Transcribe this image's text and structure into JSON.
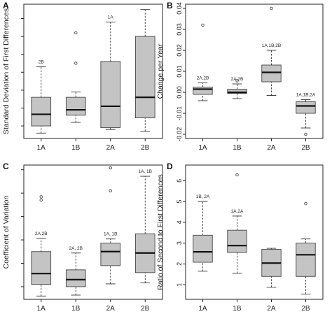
{
  "chart_data": [
    {
      "panel": "A",
      "type": "box",
      "ylabel": "Standard Deviation of First Differences",
      "categories": [
        "1A",
        "1B",
        "2A",
        "2B"
      ],
      "ylim": [
        0.003,
        0.078
      ],
      "yticks": [
        0.01,
        0.02,
        0.03,
        0.04,
        0.05,
        0.06,
        0.07
      ],
      "ytick_labels": [
        "",
        "",
        "",
        "",
        "",
        "",
        ""
      ],
      "boxes": [
        {
          "category": "1A",
          "min": 0.006,
          "q1": 0.01,
          "median": 0.0165,
          "q3": 0.026,
          "max": 0.043,
          "outliers": [],
          "annotation": "2B"
        },
        {
          "category": "1B",
          "min": 0.012,
          "q1": 0.016,
          "median": 0.019,
          "q3": 0.026,
          "max": 0.029,
          "outliers": [
            0.045,
            0.062
          ],
          "annotation": ""
        },
        {
          "category": "2A",
          "min": 0.008,
          "q1": 0.009,
          "median": 0.021,
          "q3": 0.046,
          "max": 0.068,
          "outliers": [],
          "annotation": "1A"
        },
        {
          "category": "2B",
          "min": 0.007,
          "q1": 0.0145,
          "median": 0.026,
          "q3": 0.06,
          "max": 0.075,
          "outliers": [],
          "annotation": ""
        }
      ]
    },
    {
      "panel": "B",
      "type": "box",
      "ylabel": "Change per Year",
      "categories": [
        "1A",
        "1B",
        "2A",
        "2B"
      ],
      "ylim": [
        -0.022,
        0.042
      ],
      "yticks": [
        -0.02,
        -0.01,
        0.0,
        0.01,
        0.02,
        0.03,
        0.04
      ],
      "ytick_labels": [
        "-0.02",
        "-0.01",
        "0.00",
        "0.01",
        "0.02",
        "0.03",
        "0.04"
      ],
      "boxes": [
        {
          "category": "1A",
          "min": -0.004,
          "q1": -0.001,
          "median": 0.0015,
          "q3": 0.0025,
          "max": 0.0045,
          "outliers": [
            0.032
          ],
          "annotation": "2A,2B"
        },
        {
          "category": "1B",
          "min": -0.003,
          "q1": -0.0005,
          "median": 0.0,
          "q3": 0.0015,
          "max": 0.004,
          "outliers": [
            0.0055
          ],
          "annotation": "2A,2B"
        },
        {
          "category": "2A",
          "min": -0.0015,
          "q1": 0.005,
          "median": 0.0095,
          "q3": 0.013,
          "max": 0.02,
          "outliers": [
            0.04
          ],
          "annotation": "1A,1B,2B"
        },
        {
          "category": "2B",
          "min": -0.017,
          "q1": -0.01,
          "median": -0.0065,
          "q3": -0.0045,
          "max": -0.0035,
          "outliers": [
            -0.02
          ],
          "annotation": "1A,1B,2A"
        }
      ]
    },
    {
      "panel": "C",
      "type": "box",
      "ylabel": "Coefficient of Variation",
      "categories": [
        "1A",
        "1B",
        "2A",
        "2B"
      ],
      "ylim": [
        2.3,
        31.0
      ],
      "yticks": [
        5,
        10,
        15,
        20,
        25,
        30
      ],
      "ytick_labels": [
        "",
        "",
        "",
        "",
        "",
        ""
      ],
      "boxes": [
        {
          "category": "1A",
          "min": 3.0,
          "q1": 5.5,
          "median": 7.8,
          "q3": 12.5,
          "max": 15.3,
          "outliers": [
            23.5,
            24.2
          ],
          "annotation": "2A,2B"
        },
        {
          "category": "1B",
          "min": 3.2,
          "q1": 5.0,
          "median": 6.5,
          "q3": 8.6,
          "max": 12.2,
          "outliers": [],
          "annotation": "2A, 2B"
        },
        {
          "category": "2A",
          "min": 5.6,
          "q1": 9.5,
          "median": 12.5,
          "q3": 14.3,
          "max": 15.2,
          "outliers": [
            25.5,
            30.4
          ],
          "annotation": "1A, 1B"
        },
        {
          "category": "2B",
          "min": 5.8,
          "q1": 8.0,
          "median": 12.2,
          "q3": 16.3,
          "max": 28.6,
          "outliers": [],
          "annotation": "1A, 1B"
        }
      ]
    },
    {
      "panel": "D",
      "type": "box",
      "ylabel": "Ratio of Second to First Differences",
      "categories": [
        "1A",
        "1B",
        "2A",
        "2B"
      ],
      "ylim": [
        0.3,
        6.75
      ],
      "yticks": [
        1,
        2,
        3,
        4,
        5,
        6
      ],
      "ytick_labels": [
        "1",
        "2",
        "3",
        "4",
        "5",
        "6"
      ],
      "boxes": [
        {
          "category": "1A",
          "min": 1.65,
          "q1": 2.08,
          "median": 2.58,
          "q3": 3.38,
          "max": 5.0,
          "outliers": [],
          "annotation": "1B, 2A"
        },
        {
          "category": "1B",
          "min": 1.55,
          "q1": 2.55,
          "median": 2.88,
          "q3": 3.62,
          "max": 4.3,
          "outliers": [
            6.28
          ],
          "annotation": "1A,2A"
        },
        {
          "category": "2A",
          "min": 0.88,
          "q1": 1.4,
          "median": 2.04,
          "q3": 2.7,
          "max": 2.75,
          "outliers": [],
          "annotation": ""
        },
        {
          "category": "2B",
          "min": 0.55,
          "q1": 1.4,
          "median": 2.44,
          "q3": 3.0,
          "max": 3.2,
          "outliers": [
            4.9
          ],
          "annotation": ""
        }
      ]
    }
  ]
}
